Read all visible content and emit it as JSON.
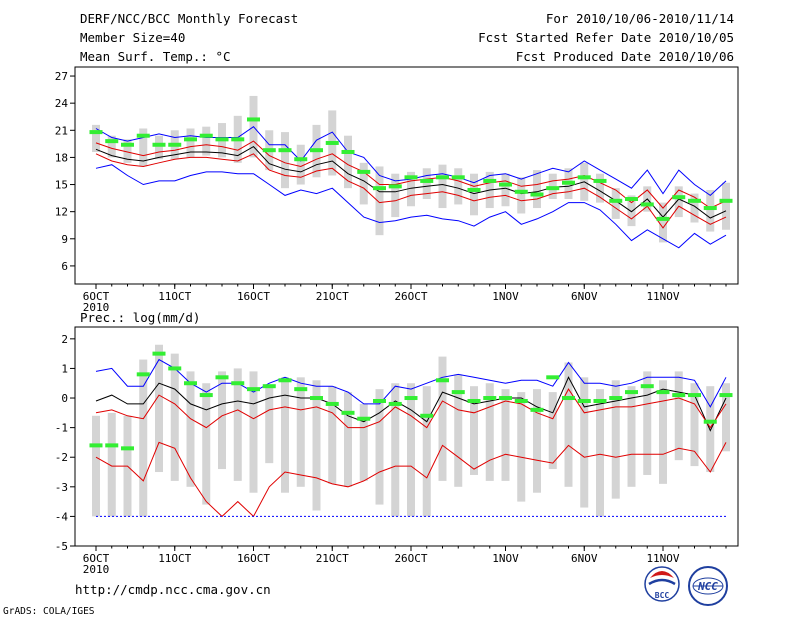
{
  "header": {
    "title": "DERF/NCC/BCC Monthly Forecast",
    "member_size": "Member Size=40",
    "period": "For 2010/10/06-2010/11/14",
    "started": "Fcst Started Refer Date 2010/10/05",
    "produced": "Fcst Produced Date 2010/10/06"
  },
  "footer": {
    "url": "http://cmdp.ncc.cma.gov.cn",
    "grads": "GrADS: COLA/IGES",
    "logo_bcc": "BCC",
    "logo_ncc": "NCC"
  },
  "colors": {
    "blue": "#0000ff",
    "red": "#e00000",
    "black": "#000000",
    "green": "#33ee33",
    "bar": "#d4d4d4"
  },
  "chart_data": [
    {
      "type": "line",
      "title": "Mean Surf. Temp.: °C",
      "ylim": [
        4,
        28
      ],
      "yticks": [
        6,
        9,
        12,
        15,
        18,
        21,
        24,
        27
      ],
      "xticks": [
        {
          "day": 0,
          "label": "6OCT",
          "sub": "2010"
        },
        {
          "day": 5,
          "label": "11OCT"
        },
        {
          "day": 10,
          "label": "16OCT"
        },
        {
          "day": 15,
          "label": "21OCT"
        },
        {
          "day": 20,
          "label": "26OCT"
        },
        {
          "day": 26,
          "label": "1NOV"
        },
        {
          "day": 31,
          "label": "6NOV"
        },
        {
          "day": 36,
          "label": "11NOV"
        }
      ],
      "series": [
        {
          "name": "max",
          "color": "blue",
          "values": [
            21.2,
            20.2,
            19.8,
            20.2,
            20.6,
            20.2,
            20.4,
            20.2,
            20.2,
            20.2,
            21.4,
            19.4,
            19.4,
            17.6,
            19.9,
            20.8,
            18.6,
            18.0,
            16.0,
            15.4,
            15.6,
            16.0,
            16.2,
            15.8,
            15.2,
            16.0,
            16.2,
            15.6,
            16.2,
            16.8,
            16.4,
            17.6,
            16.6,
            15.6,
            14.6,
            16.6,
            14.0,
            16.6,
            15.0,
            13.8,
            15.4
          ]
        },
        {
          "name": "upper",
          "color": "red",
          "values": [
            19.6,
            19.0,
            18.6,
            18.2,
            18.6,
            18.8,
            19.2,
            19.4,
            19.2,
            18.8,
            19.8,
            18.2,
            17.4,
            17.0,
            17.8,
            18.4,
            17.2,
            16.4,
            15.0,
            15.0,
            15.4,
            15.6,
            15.8,
            15.4,
            14.8,
            15.2,
            15.4,
            14.8,
            15.0,
            15.4,
            15.6,
            16.0,
            15.2,
            14.4,
            13.0,
            14.4,
            12.4,
            14.4,
            13.6,
            12.4,
            13.2
          ]
        },
        {
          "name": "mean",
          "color": "black",
          "values": [
            18.9,
            18.2,
            17.8,
            17.6,
            18.0,
            18.3,
            18.6,
            18.6,
            18.5,
            18.2,
            19.2,
            17.3,
            16.7,
            16.4,
            17.2,
            17.6,
            16.2,
            15.4,
            14.2,
            14.2,
            14.6,
            14.8,
            15.0,
            14.6,
            14.0,
            14.4,
            14.6,
            14.0,
            14.2,
            14.7,
            14.8,
            15.3,
            14.3,
            13.2,
            12.0,
            13.4,
            11.4,
            13.4,
            12.6,
            11.3,
            12.1
          ]
        },
        {
          "name": "lower",
          "color": "red",
          "values": [
            18.4,
            17.6,
            17.2,
            17.0,
            17.4,
            17.8,
            18.0,
            18.0,
            17.8,
            17.6,
            18.4,
            16.6,
            16.0,
            15.8,
            16.5,
            16.8,
            15.4,
            14.6,
            13.0,
            13.2,
            13.8,
            14.0,
            14.2,
            13.8,
            13.2,
            13.6,
            13.8,
            13.2,
            13.4,
            14.0,
            14.2,
            14.6,
            13.6,
            12.4,
            11.2,
            12.6,
            10.2,
            12.6,
            11.6,
            10.6,
            11.4
          ]
        },
        {
          "name": "min",
          "color": "blue",
          "values": [
            16.8,
            17.2,
            16.0,
            15.0,
            15.4,
            15.4,
            16.0,
            16.4,
            16.4,
            16.2,
            16.2,
            15.0,
            13.8,
            14.4,
            14.0,
            14.6,
            13.0,
            11.4,
            10.8,
            11.0,
            11.4,
            11.6,
            11.2,
            11.0,
            10.4,
            11.4,
            12.0,
            10.6,
            11.2,
            12.0,
            13.0,
            13.0,
            12.2,
            10.6,
            8.8,
            10.0,
            9.0,
            8.0,
            9.6,
            8.4,
            9.4
          ]
        }
      ],
      "observed": [
        20.8,
        19.8,
        19.4,
        20.4,
        19.4,
        19.4,
        20.0,
        20.4,
        20.0,
        20.0,
        22.2,
        18.8,
        18.8,
        17.8,
        18.8,
        19.6,
        18.6,
        16.4,
        14.6,
        14.8,
        15.8,
        15.4,
        15.8,
        15.8,
        14.4,
        15.4,
        15.0,
        14.2,
        13.9,
        14.6,
        15.2,
        15.8,
        15.4,
        13.2,
        13.4,
        12.8,
        11.2,
        13.6,
        13.2,
        12.4,
        13.2
      ],
      "range_bars": [
        [
          18.6,
          21.6
        ],
        [
          18.0,
          20.4
        ],
        [
          17.4,
          20.0
        ],
        [
          17.0,
          21.2
        ],
        [
          17.8,
          20.4
        ],
        [
          17.8,
          21.0
        ],
        [
          18.0,
          21.2
        ],
        [
          18.2,
          21.4
        ],
        [
          18.0,
          21.8
        ],
        [
          17.4,
          22.6
        ],
        [
          18.0,
          24.8
        ],
        [
          16.6,
          21.0
        ],
        [
          14.6,
          20.8
        ],
        [
          15.0,
          19.4
        ],
        [
          15.8,
          21.6
        ],
        [
          16.0,
          23.2
        ],
        [
          14.6,
          20.4
        ],
        [
          12.8,
          17.4
        ],
        [
          9.4,
          17.0
        ],
        [
          11.4,
          16.2
        ],
        [
          12.6,
          16.4
        ],
        [
          13.4,
          16.8
        ],
        [
          12.4,
          17.2
        ],
        [
          12.8,
          16.8
        ],
        [
          11.6,
          16.2
        ],
        [
          12.4,
          16.4
        ],
        [
          12.6,
          16.2
        ],
        [
          11.8,
          15.8
        ],
        [
          12.4,
          16.6
        ],
        [
          13.4,
          16.2
        ],
        [
          13.4,
          16.8
        ],
        [
          13.2,
          17.4
        ],
        [
          13.0,
          16.2
        ],
        [
          11.2,
          14.6
        ],
        [
          10.4,
          13.8
        ],
        [
          12.0,
          14.8
        ],
        [
          8.6,
          13.0
        ],
        [
          11.4,
          14.8
        ],
        [
          10.8,
          14.0
        ],
        [
          9.8,
          14.4
        ],
        [
          10.0,
          15.2
        ]
      ]
    },
    {
      "type": "line",
      "title": "Prec.: log(mm/d)",
      "ylim": [
        -5,
        2.4
      ],
      "yticks": [
        -5,
        -4,
        -3,
        -2,
        -1,
        0,
        1,
        2
      ],
      "xticks": [
        {
          "day": 0,
          "label": "6OCT",
          "sub": "2010"
        },
        {
          "day": 5,
          "label": "11OCT"
        },
        {
          "day": 10,
          "label": "16OCT"
        },
        {
          "day": 15,
          "label": "21OCT"
        },
        {
          "day": 20,
          "label": "26OCT"
        },
        {
          "day": 26,
          "label": "1NOV"
        },
        {
          "day": 31,
          "label": "6NOV"
        },
        {
          "day": 36,
          "label": "11NOV"
        }
      ],
      "series": [
        {
          "name": "max",
          "color": "blue",
          "values": [
            0.9,
            1.0,
            0.4,
            0.4,
            1.3,
            1.0,
            0.5,
            0.2,
            0.5,
            0.5,
            0.2,
            0.5,
            0.7,
            0.5,
            0.4,
            0.4,
            0.2,
            -0.2,
            -0.2,
            0.4,
            0.3,
            0.5,
            0.7,
            0.8,
            0.7,
            0.6,
            0.5,
            0.6,
            0.6,
            0.4,
            1.2,
            0.5,
            0.5,
            0.4,
            0.5,
            0.7,
            0.7,
            0.7,
            0.6,
            -0.3,
            0.7
          ]
        },
        {
          "name": "mean",
          "color": "black",
          "values": [
            -0.1,
            0.1,
            -0.2,
            -0.2,
            0.5,
            0.3,
            -0.2,
            -0.4,
            -0.2,
            -0.1,
            -0.2,
            0.0,
            0.1,
            0.0,
            0.0,
            -0.2,
            -0.6,
            -0.8,
            -0.5,
            -0.1,
            -0.4,
            -0.8,
            0.2,
            0.0,
            -0.2,
            -0.1,
            0.0,
            0.0,
            -0.3,
            -0.5,
            0.7,
            -0.3,
            -0.2,
            -0.1,
            0.0,
            0.1,
            0.3,
            0.2,
            0.1,
            -1.1,
            0.0
          ]
        },
        {
          "name": "upper",
          "color": "red",
          "values": [
            -0.5,
            -0.4,
            -0.6,
            -0.7,
            0.1,
            -0.2,
            -0.7,
            -1.0,
            -0.6,
            -0.4,
            -0.7,
            -0.4,
            -0.3,
            -0.4,
            -0.3,
            -0.5,
            -1.0,
            -1.0,
            -0.8,
            -0.3,
            -0.6,
            -1.0,
            -0.1,
            -0.4,
            -0.5,
            -0.3,
            -0.1,
            -0.2,
            -0.5,
            -0.7,
            0.3,
            -0.5,
            -0.4,
            -0.3,
            -0.3,
            -0.2,
            -0.1,
            0.0,
            -0.2,
            -1.0,
            -0.2
          ]
        },
        {
          "name": "lower",
          "color": "red",
          "values": [
            -2.0,
            -2.3,
            -2.3,
            -2.8,
            -1.5,
            -1.7,
            -2.7,
            -3.5,
            -4.0,
            -3.5,
            -4.0,
            -3.0,
            -2.5,
            -2.6,
            -2.7,
            -2.9,
            -3.0,
            -2.8,
            -2.5,
            -2.3,
            -2.3,
            -2.7,
            -1.6,
            -2.0,
            -2.4,
            -2.1,
            -1.9,
            -2.0,
            -2.1,
            -2.2,
            -1.6,
            -2.0,
            -1.9,
            -2.0,
            -1.9,
            -1.9,
            -1.9,
            -1.7,
            -1.8,
            -2.5,
            -1.5
          ]
        },
        {
          "name": "floor",
          "color": "blue",
          "values": [
            -4.0,
            -4.0,
            -4.0,
            -4.0,
            -4.0,
            -4.0,
            -4.0,
            -4.0,
            -4.0,
            -4.0,
            -4.0,
            -4.0,
            -4.0,
            -4.0,
            -4.0,
            -4.0,
            -4.0,
            -4.0,
            -4.0,
            -4.0,
            -4.0,
            -4.0,
            -4.0,
            -4.0,
            -4.0,
            -4.0,
            -4.0,
            -4.0,
            -4.0,
            -4.0,
            -4.0,
            -4.0,
            -4.0,
            -4.0,
            -4.0,
            -4.0,
            -4.0,
            -4.0,
            -4.0,
            -4.0,
            -4.0
          ]
        }
      ],
      "observed": [
        -1.6,
        -1.6,
        -1.7,
        0.8,
        1.5,
        1.0,
        0.5,
        0.1,
        0.7,
        0.5,
        0.3,
        0.4,
        0.6,
        0.3,
        0.0,
        -0.2,
        -0.5,
        -0.7,
        -0.1,
        -0.2,
        0.0,
        -0.6,
        0.6,
        0.2,
        -0.1,
        0.0,
        0.0,
        -0.1,
        -0.4,
        0.7,
        0.0,
        -0.1,
        -0.1,
        0.0,
        0.2,
        0.4,
        0.2,
        0.1,
        0.1,
        -0.8,
        0.1
      ],
      "range_bars": [
        [
          -4.0,
          -0.6
        ],
        [
          -4.0,
          -0.5
        ],
        [
          -4.0,
          -0.6
        ],
        [
          -4.0,
          1.3
        ],
        [
          -2.5,
          1.8
        ],
        [
          -2.8,
          1.5
        ],
        [
          -3.0,
          0.9
        ],
        [
          -3.6,
          0.5
        ],
        [
          -2.4,
          0.9
        ],
        [
          -2.8,
          1.0
        ],
        [
          -3.2,
          0.9
        ],
        [
          -2.2,
          0.4
        ],
        [
          -3.2,
          0.7
        ],
        [
          -3.0,
          0.7
        ],
        [
          -3.8,
          0.6
        ],
        [
          -2.9,
          0.4
        ],
        [
          -3.0,
          0.2
        ],
        [
          -2.8,
          -0.2
        ],
        [
          -3.6,
          0.3
        ],
        [
          -4.0,
          0.5
        ],
        [
          -4.0,
          0.5
        ],
        [
          -4.0,
          0.4
        ],
        [
          -2.8,
          1.4
        ],
        [
          -3.0,
          0.8
        ],
        [
          -2.6,
          0.4
        ],
        [
          -2.8,
          0.5
        ],
        [
          -2.8,
          0.3
        ],
        [
          -3.5,
          0.2
        ],
        [
          -3.2,
          0.3
        ],
        [
          -2.4,
          0.2
        ],
        [
          -3.0,
          1.2
        ],
        [
          -3.7,
          0.7
        ],
        [
          -4.0,
          0.3
        ],
        [
          -3.4,
          0.6
        ],
        [
          -3.0,
          0.4
        ],
        [
          -2.6,
          0.9
        ],
        [
          -2.9,
          0.6
        ],
        [
          -2.1,
          0.9
        ],
        [
          -2.3,
          0.5
        ],
        [
          -2.5,
          0.4
        ],
        [
          -1.8,
          0.5
        ]
      ]
    }
  ]
}
